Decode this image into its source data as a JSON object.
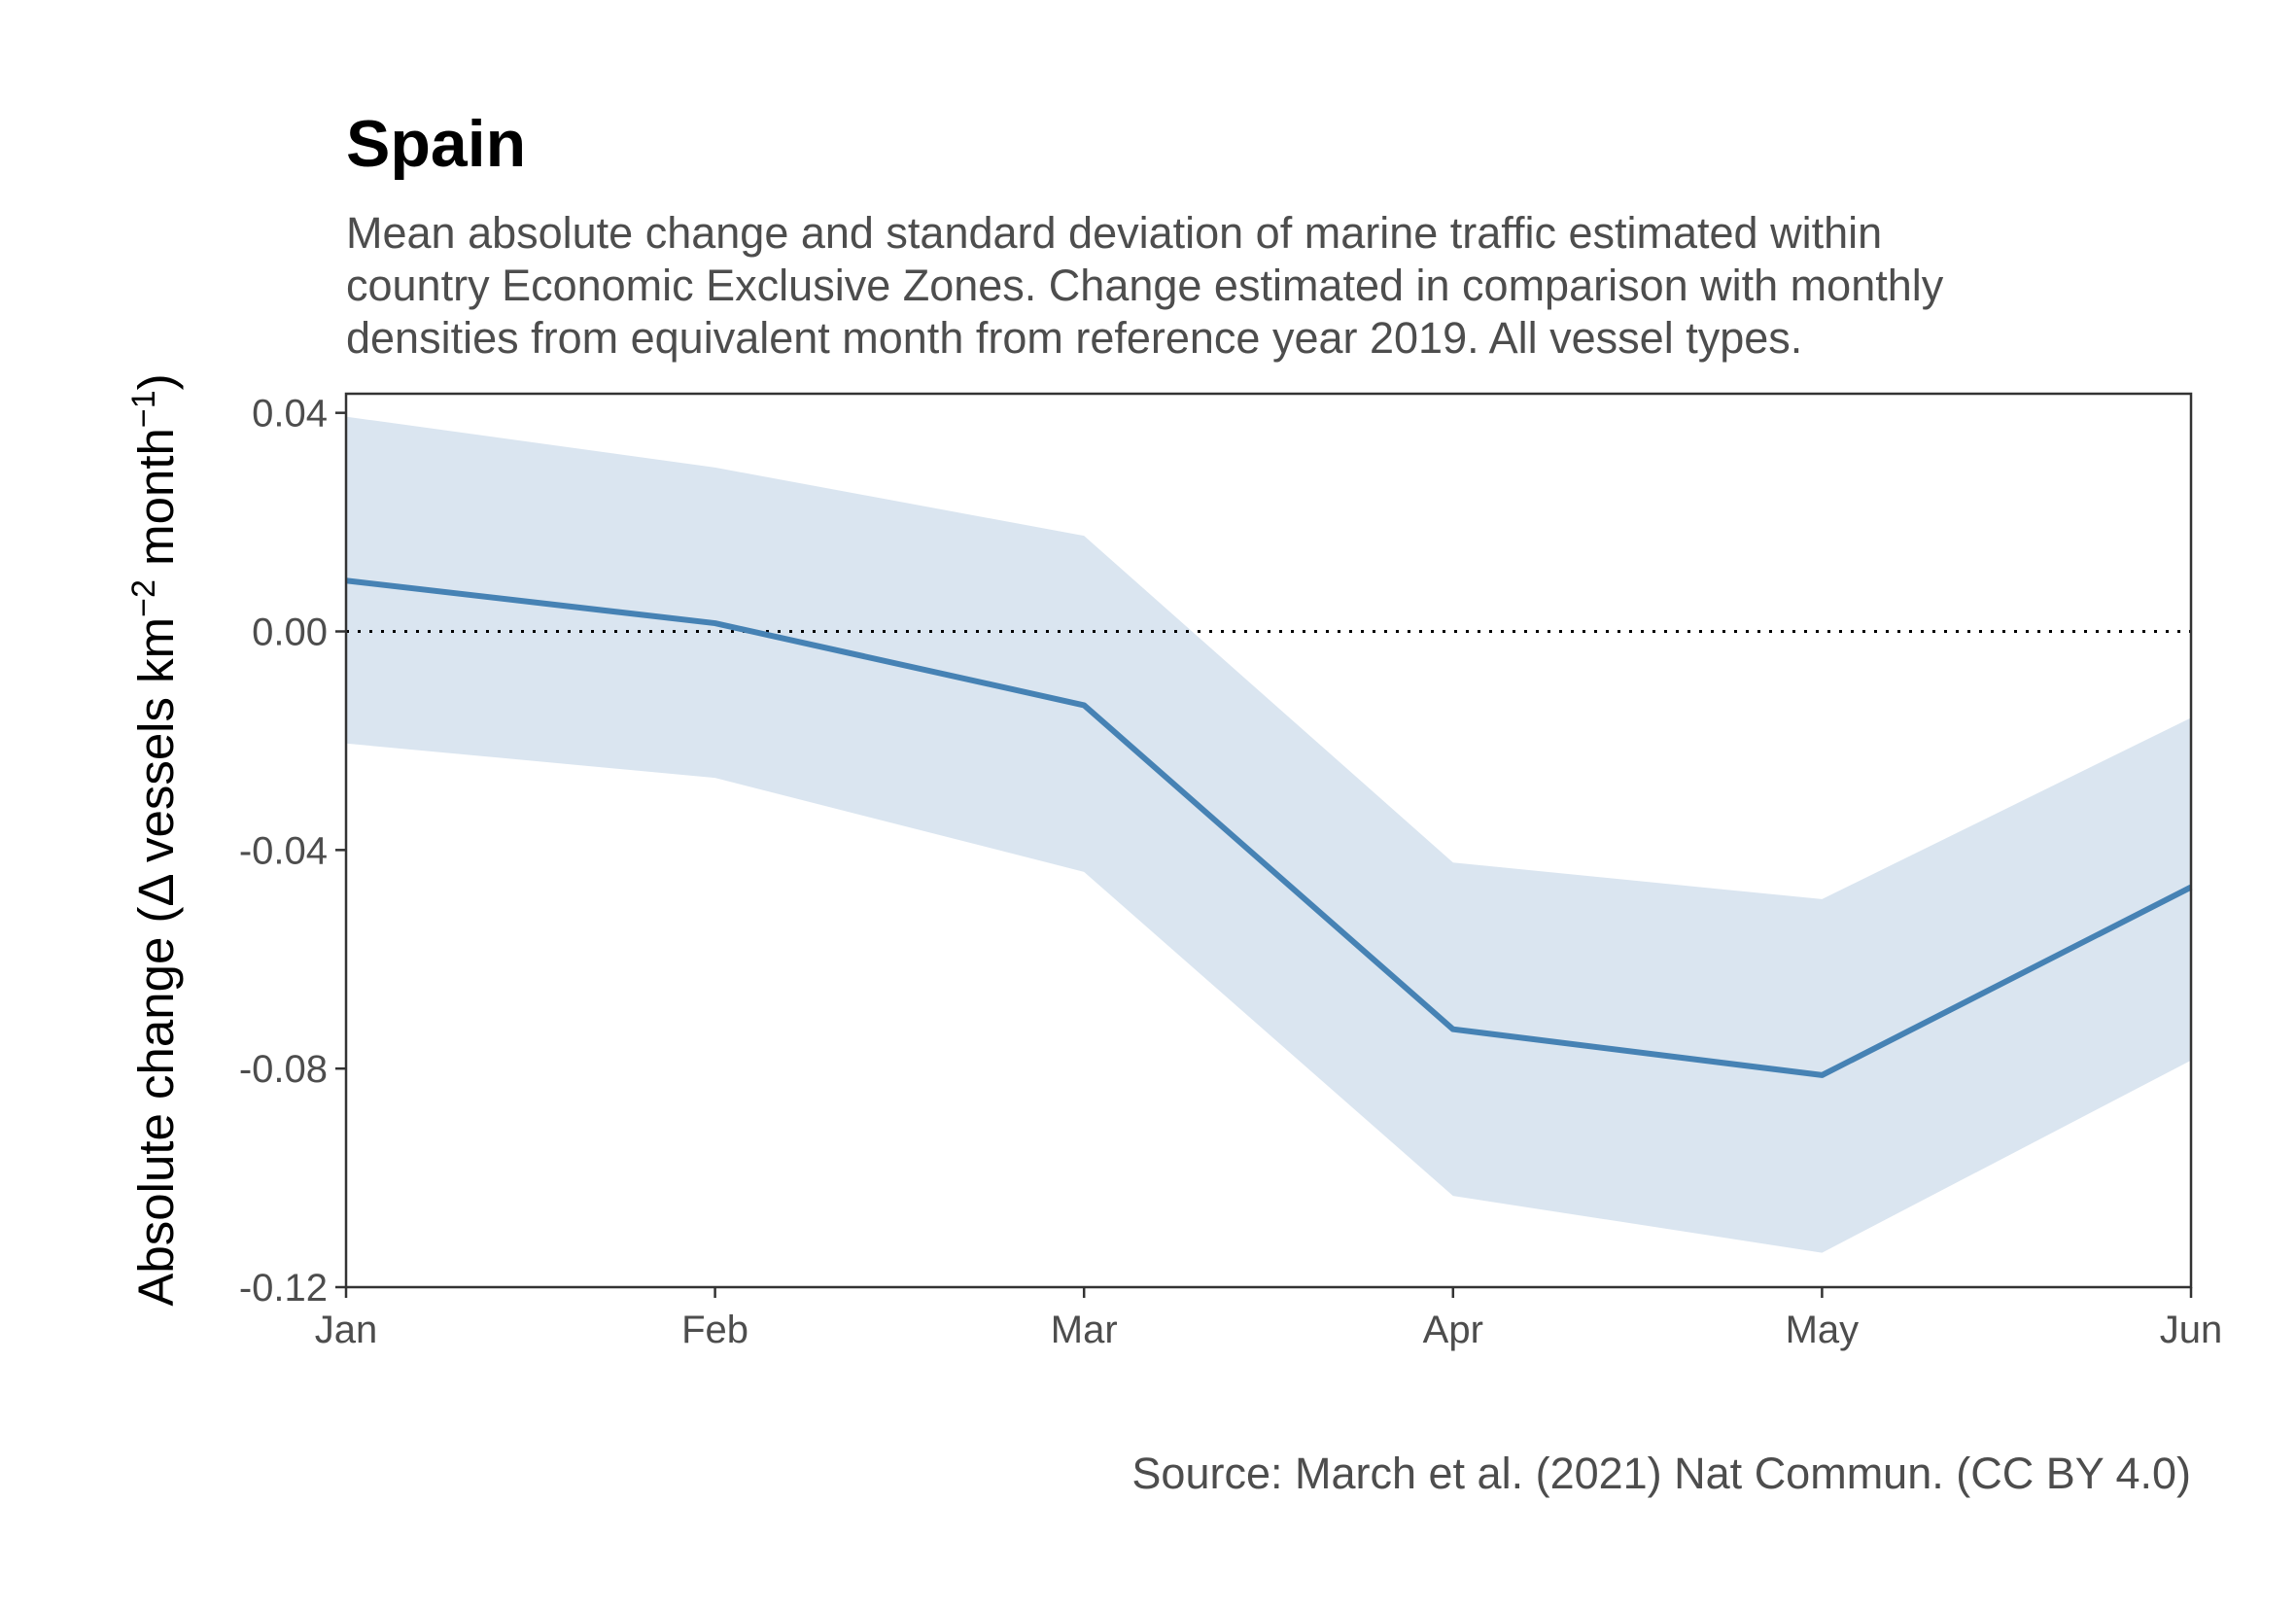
{
  "chart_data": {
    "type": "line",
    "title": "Spain",
    "subtitle_lines": [
      "Mean absolute change and standard deviation of marine traffic estimated within",
      "country Economic Exclusive Zones. Change estimated in comparison with monthly",
      "densities from equivalent month from reference year 2019. All vessel types."
    ],
    "ylabel": {
      "prefix": "Absolute change (",
      "delta": "Δ",
      "body": " vessels km",
      "sup1": "−2",
      "mid": " month",
      "sup2": "−1",
      "suffix": ")"
    },
    "xlabel": "",
    "caption": "Source: March et al. (2021) Nat Commun. (CC BY 4.0)",
    "categories": [
      "Jan",
      "Feb",
      "Mar",
      "Apr",
      "May",
      "Jun"
    ],
    "series": [
      {
        "values": [
          0.0093,
          0.0015,
          -0.0135,
          -0.0728,
          -0.0812,
          -0.0468
        ],
        "lower": [
          -0.0205,
          -0.0268,
          -0.044,
          -0.1033,
          -0.1137,
          -0.0785
        ],
        "upper": [
          0.0393,
          0.03,
          0.0175,
          -0.0423,
          -0.049,
          -0.0158
        ],
        "color": "#4682b4",
        "band_color": "#dae5f0"
      }
    ],
    "reference_line": {
      "y": 0,
      "style": "dotted",
      "color": "#000000"
    },
    "ylim": [
      -0.12,
      0.0435
    ],
    "yticks": [
      0.04,
      0.0,
      -0.04,
      -0.08,
      -0.12
    ],
    "ytick_labels": [
      "0.04",
      "0.00",
      "-0.04",
      "-0.08",
      "-0.12"
    ],
    "grid": false,
    "legend": "none"
  }
}
